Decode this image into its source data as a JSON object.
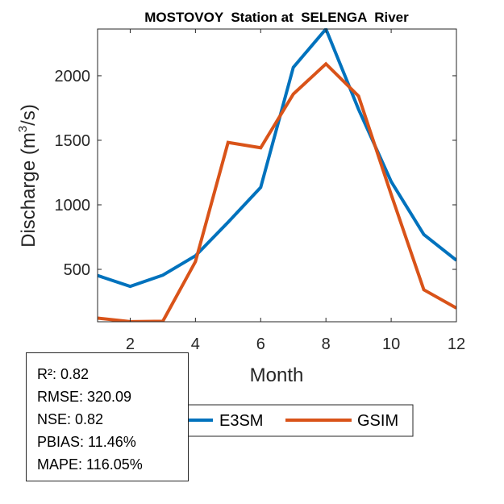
{
  "chart_data": {
    "type": "line",
    "title": "MOSTOVOY  Station at  SELENGA  River",
    "xlabel": "Month",
    "ylabel": "Discharge (m³/s)",
    "ylabel_parts": {
      "pre": "Discharge (m",
      "sup": "3",
      "post": "/s)"
    },
    "x": [
      1,
      2,
      3,
      4,
      5,
      6,
      7,
      8,
      9,
      10,
      11,
      12
    ],
    "xlim": [
      1,
      12
    ],
    "ylim": [
      94,
      2362
    ],
    "xticks": [
      2,
      4,
      6,
      8,
      10,
      12
    ],
    "xtick_labels": [
      "2",
      "4",
      "6",
      "8",
      "10",
      "12"
    ],
    "yticks": [
      500,
      1000,
      1500,
      2000
    ],
    "ytick_labels": [
      "500",
      "1000",
      "1500",
      "2000"
    ],
    "grid": false,
    "series": [
      {
        "name": "E3SM",
        "color": "#0072BD",
        "values": [
          452,
          368,
          455,
          605,
          865,
          1135,
          2065,
          2362,
          1740,
          1180,
          770,
          570
        ]
      },
      {
        "name": "GSIM",
        "color": "#D95319",
        "values": [
          122,
          95,
          98,
          560,
          1483,
          1442,
          1858,
          2092,
          1842,
          1080,
          342,
          200
        ]
      }
    ],
    "legend": {
      "placement": "bottom-outside",
      "orientation": "horizontal",
      "entries": [
        "E3SM",
        "GSIM"
      ]
    }
  },
  "stats": {
    "lines": [
      "R²: 0.82",
      "RMSE: 320.09",
      "NSE: 0.82",
      "PBIAS: 11.46%",
      "MAPE: 116.05%"
    ]
  }
}
